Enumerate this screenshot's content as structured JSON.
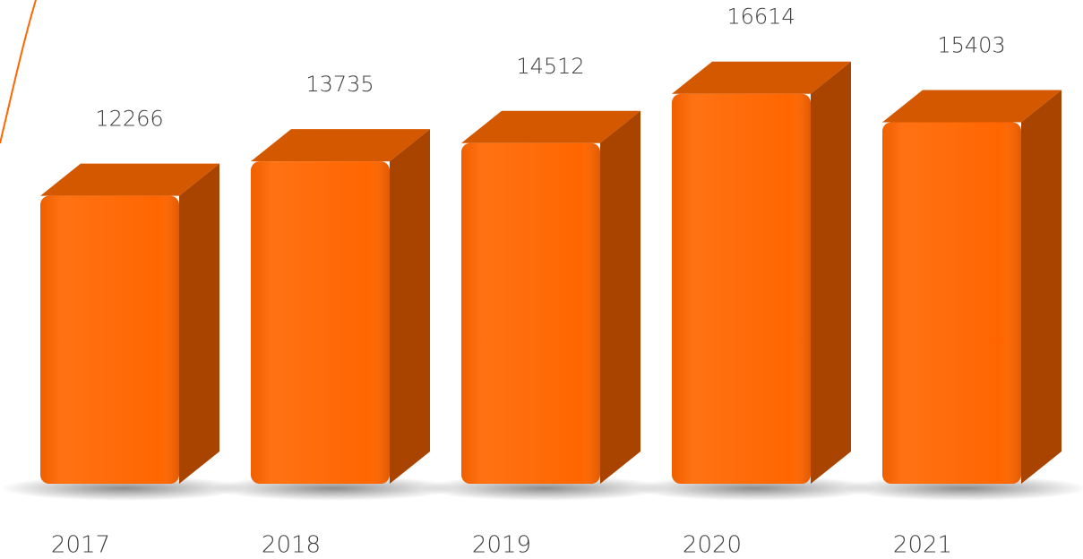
{
  "chart_data": {
    "type": "bar3d",
    "categories": [
      "2017",
      "2018",
      "2019",
      "2020",
      "2021"
    ],
    "values": [
      12266,
      13735,
      14512,
      16614,
      15403
    ],
    "color": "#ff6600"
  }
}
